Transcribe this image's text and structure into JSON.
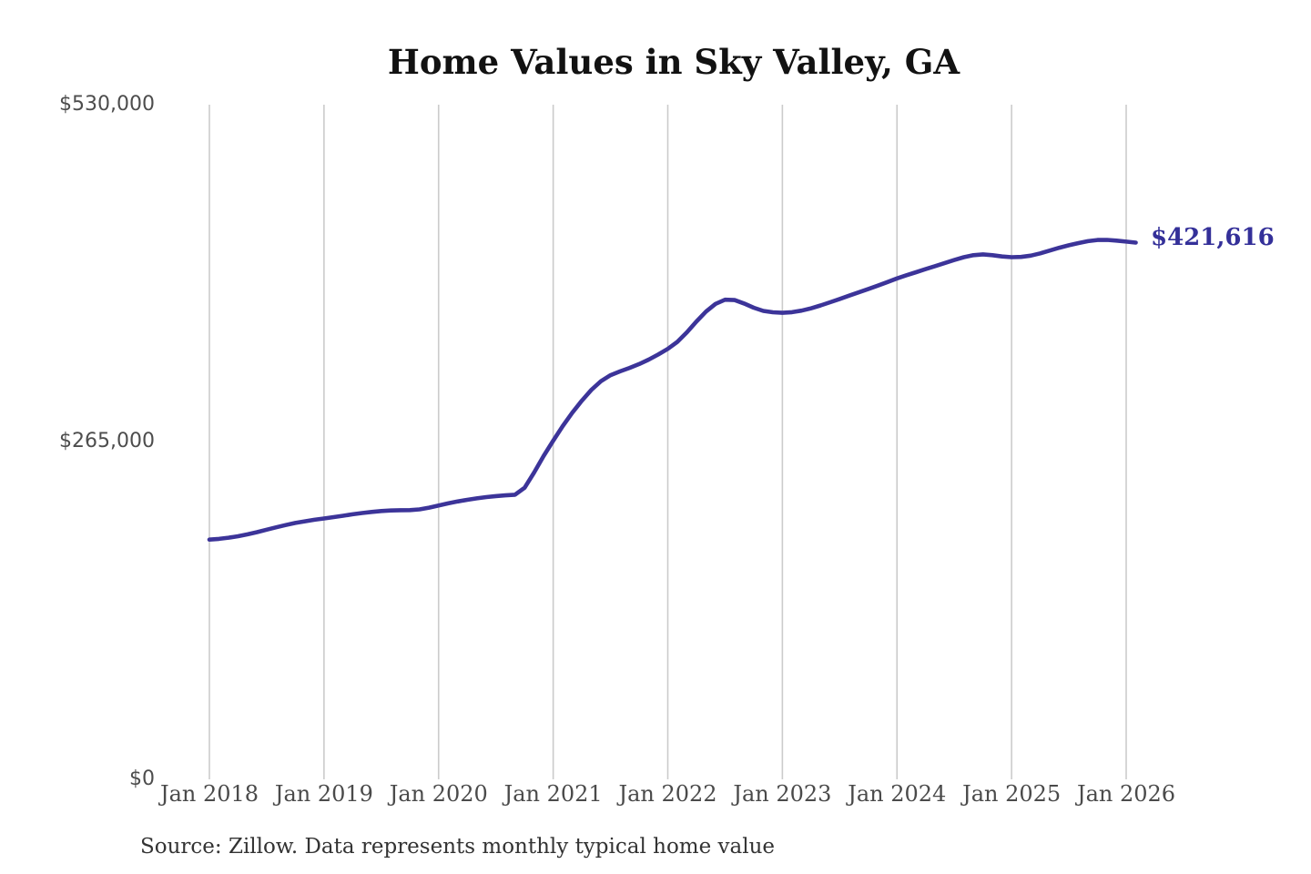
{
  "title": "Home Values in Sky Valley, GA",
  "source_note": "Source: Zillow. Data represents monthly typical home value",
  "current_value_label": "$421,616",
  "colors": {
    "line": "#3c3499",
    "current_value_label": "#343099",
    "gridline": "#cbcbcb",
    "title": "#121212",
    "axis_text": "#4d4d4d",
    "source_text": "#333333"
  },
  "y_axis": {
    "ticks": [
      "$530,000",
      "$265,000",
      "$0"
    ],
    "min": 0,
    "max": 530000
  },
  "x_axis": {
    "ticks": [
      "Jan 2018",
      "Jan 2019",
      "Jan 2020",
      "Jan 2021",
      "Jan 2022",
      "Jan 2023",
      "Jan 2024",
      "Jan 2025",
      "Jan 2026"
    ]
  },
  "chart_data": {
    "type": "line",
    "title": "Home Values in Sky Valley, GA",
    "series_name": "Monthly typical home value",
    "ylabel": "",
    "xlabel": "",
    "ylim": [
      0,
      530000
    ],
    "grid": "vertical-only",
    "legend": "none",
    "end_annotation": "$421,616",
    "x": [
      "2018-01",
      "2018-02",
      "2018-03",
      "2018-04",
      "2018-05",
      "2018-06",
      "2018-07",
      "2018-08",
      "2018-09",
      "2018-10",
      "2018-11",
      "2018-12",
      "2019-01",
      "2019-02",
      "2019-03",
      "2019-04",
      "2019-05",
      "2019-06",
      "2019-07",
      "2019-08",
      "2019-09",
      "2019-10",
      "2019-11",
      "2019-12",
      "2020-01",
      "2020-02",
      "2020-03",
      "2020-04",
      "2020-05",
      "2020-06",
      "2020-07",
      "2020-08",
      "2020-09",
      "2020-10",
      "2020-11",
      "2020-12",
      "2021-01",
      "2021-02",
      "2021-03",
      "2021-04",
      "2021-05",
      "2021-06",
      "2021-07",
      "2021-08",
      "2021-09",
      "2021-10",
      "2021-11",
      "2021-12",
      "2022-01",
      "2022-02",
      "2022-03",
      "2022-04",
      "2022-05",
      "2022-06",
      "2022-07",
      "2022-08",
      "2022-09",
      "2022-10",
      "2022-11",
      "2022-12",
      "2023-01",
      "2023-02",
      "2023-03",
      "2023-04",
      "2023-05",
      "2023-06",
      "2023-07",
      "2023-08",
      "2023-09",
      "2023-10",
      "2023-11",
      "2023-12",
      "2024-01",
      "2024-02",
      "2024-03",
      "2024-04",
      "2024-05",
      "2024-06",
      "2024-07",
      "2024-08",
      "2024-09",
      "2024-10",
      "2024-11",
      "2024-12",
      "2025-01",
      "2025-02",
      "2025-03",
      "2025-04",
      "2025-05",
      "2025-06",
      "2025-07",
      "2025-08",
      "2025-09",
      "2025-10",
      "2025-11",
      "2025-12",
      "2026-01",
      "2026-02"
    ],
    "values": [
      188300,
      188900,
      189800,
      191000,
      192500,
      194200,
      196100,
      198000,
      199800,
      201400,
      202700,
      203900,
      204900,
      206000,
      207100,
      208200,
      209200,
      210100,
      210800,
      211200,
      211400,
      211500,
      212100,
      213400,
      215100,
      216800,
      218300,
      219600,
      220700,
      221700,
      222500,
      223100,
      223600,
      229000,
      241000,
      254000,
      266000,
      277500,
      288000,
      297500,
      306000,
      312800,
      317500,
      320500,
      323200,
      326200,
      329700,
      333700,
      338200,
      343700,
      351200,
      359700,
      367500,
      373500,
      376800,
      376500,
      373800,
      370500,
      368000,
      366900,
      366500,
      367000,
      368200,
      370000,
      372300,
      374800,
      377400,
      380000,
      382600,
      385200,
      387900,
      390700,
      393500,
      396000,
      398400,
      400800,
      403200,
      405600,
      408000,
      410200,
      411800,
      412400,
      411800,
      410800,
      410200,
      410400,
      411400,
      413200,
      415400,
      417600,
      419600,
      421300,
      422800,
      423700,
      423800,
      423200,
      422400,
      421616
    ]
  }
}
